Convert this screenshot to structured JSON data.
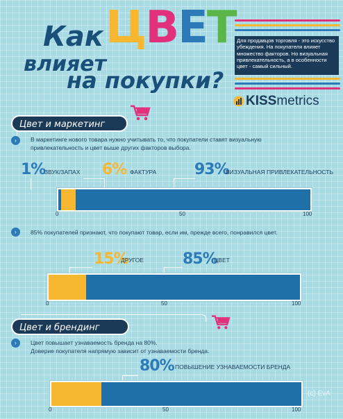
{
  "title": {
    "line1": "Как",
    "big": "ЦВЕТ",
    "line2": "влияет",
    "line3": "на покупки?"
  },
  "intro": "Для продавцов торговля - это искусство убеждения. На покупателя влияет множество факторов. Но визуальная привлекательность, а в особенности цвет - самый сильный.",
  "logo": {
    "bold": "KISS",
    "rest": "metrics"
  },
  "colors": {
    "blue": "#1f6fa8",
    "yellow": "#f7b731",
    "dark_blue": "#1b3a57",
    "pink": "#e2317c"
  },
  "section1": {
    "tag": "Цвет и маркетинг",
    "text1": "В маркетинге нового товара нужно учитывать то, что покупатели ставят визуальную привлекательность и цвет выше других факторов выбора.",
    "text2": "85% покупателей признают, что покупают товар, если им, прежде всего, понравился цвет."
  },
  "section2": {
    "tag": "Цвет и брендинг",
    "text1": "Цвет повышает узнаваемость бренда на 80%.",
    "text2": "Доверие покупателя напрямую зависит от узнаваемости бренда."
  },
  "chart_data": [
    {
      "type": "bar",
      "stacked": true,
      "xlim": [
        0,
        100
      ],
      "ticks": [
        "0",
        "50",
        "100"
      ],
      "series": [
        {
          "name": "ЗВУК/ЗАПАХ",
          "label": "1%",
          "value": 1,
          "color": "#1f6fa8"
        },
        {
          "name": "ФАКТУРА",
          "label": "6%",
          "value": 6,
          "color": "#f7b731"
        },
        {
          "name": "ВИЗУАЛЬНАЯ ПРИВЛЕКАТЕЛЬНОСТЬ",
          "label": "93%",
          "value": 93,
          "color": "#1f6fa8"
        }
      ]
    },
    {
      "type": "bar",
      "stacked": true,
      "xlim": [
        0,
        100
      ],
      "ticks": [
        "0",
        "50",
        "100"
      ],
      "series": [
        {
          "name": "ДРУГОЕ",
          "label": "15%",
          "value": 15,
          "color": "#f7b731"
        },
        {
          "name": "ЦВЕТ",
          "label": "85%",
          "value": 85,
          "color": "#1f6fa8"
        }
      ]
    },
    {
      "type": "bar",
      "stacked": true,
      "xlim": [
        0,
        100
      ],
      "ticks": [
        "0",
        "50",
        "100"
      ],
      "series": [
        {
          "name": "",
          "label": "",
          "value": 20,
          "color": "#f7b731"
        },
        {
          "name": "ПОВЫШЕНИЕ УЗНАВАЕМОСТИ БРЕНДА",
          "label": "80%",
          "value": 80,
          "color": "#1f6fa8"
        }
      ]
    }
  ],
  "watermark": "(c) EvA"
}
